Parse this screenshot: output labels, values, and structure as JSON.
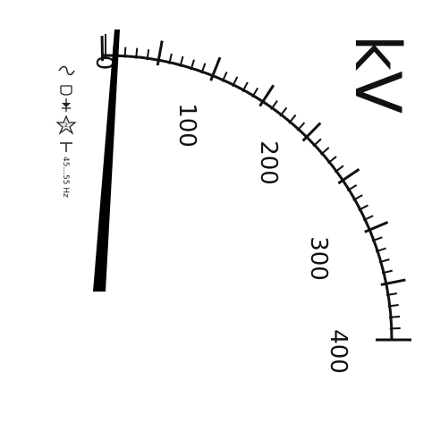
{
  "meter": {
    "unit": "kV",
    "scale_min": 0,
    "scale_max": 400,
    "major_step": 50,
    "minor_step": 10,
    "scale_labels": [
      "0",
      "100",
      "200",
      "300",
      "400"
    ],
    "needle_value": 0,
    "symbols": {
      "ac_icon": "tilde-icon",
      "magnet_icon": "moving-iron-icon",
      "rectifier_icon": "rectifier-diode-icon",
      "test_voltage_icon": "test-voltage-star-icon",
      "position_icon": "vertical-position-icon",
      "frequency_text": "45...55 Hz"
    },
    "colors": {
      "ink": "#111111",
      "face": "#ffffff"
    }
  }
}
